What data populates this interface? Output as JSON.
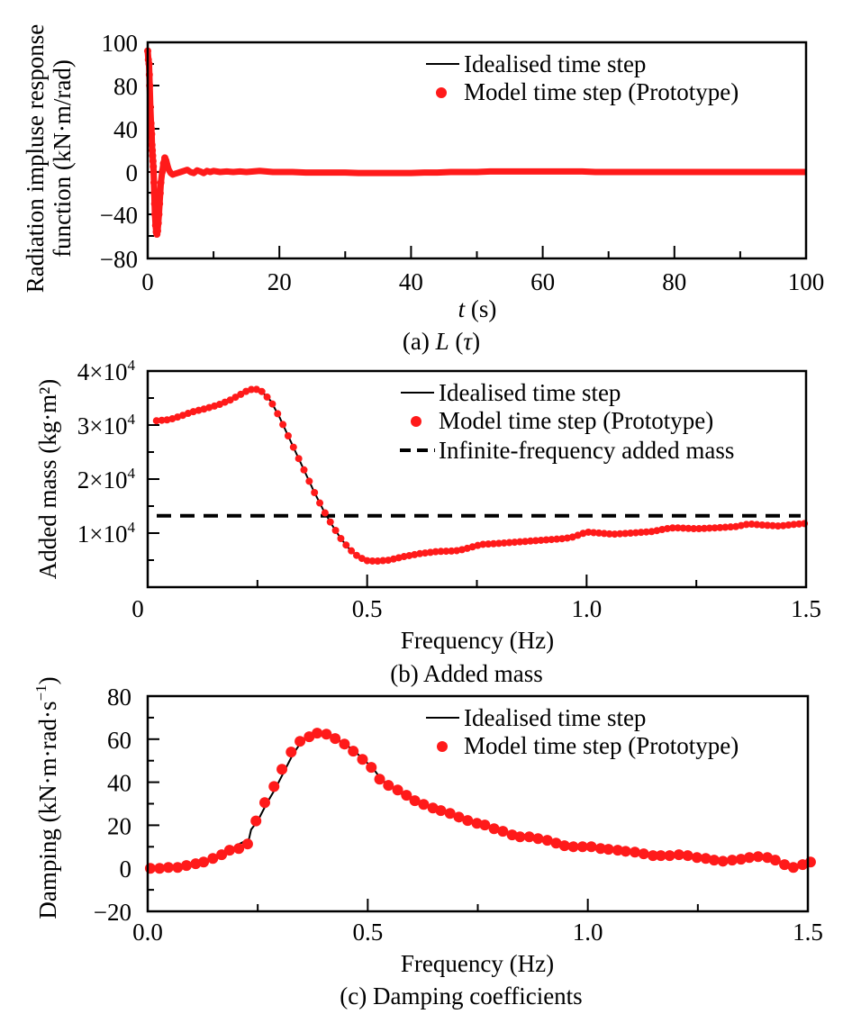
{
  "colors": {
    "model": "#ff1a1a",
    "ideal": "#000000",
    "infinite": "#000000"
  },
  "chart_data": [
    {
      "id": "a",
      "type": "line",
      "caption": "(a) L (τ)",
      "caption_parts": {
        "prefix": "(a) ",
        "italic1": "L",
        "mid": " (",
        "italic2": "τ",
        "suffix": ")"
      },
      "xlabel": "t (s)",
      "xlabel_parts": {
        "italic": "t",
        "rest": " (s)"
      },
      "ylabel_lines": [
        "Radiation impluse response",
        "function (kN·m/rad)"
      ],
      "xlim": [
        0,
        100
      ],
      "ylim": [
        -80,
        100
      ],
      "xticks": [
        0,
        20,
        40,
        60,
        80,
        100
      ],
      "xtick_labels": [
        "0",
        "20",
        "40",
        "60",
        "80",
        "100"
      ],
      "yticks_printed": [
        "100",
        "80",
        "40",
        "0",
        "−40",
        "−80"
      ],
      "legend": {
        "position": "top-right",
        "entries": [
          "Idealised time step",
          "Model time step (Prototype)"
        ]
      },
      "series": [
        {
          "name": "Idealised time step",
          "style": "line",
          "x": [
            0,
            0.2,
            0.4,
            0.6,
            0.8,
            1.0,
            1.2,
            1.5,
            2.0,
            2.6,
            3.2,
            4.0,
            5.0,
            6.0,
            7.0,
            8.0,
            9.0,
            10,
            12,
            14,
            17,
            20,
            25,
            30,
            35,
            40,
            50,
            60,
            70,
            80,
            90,
            100
          ],
          "y": [
            96,
            80,
            40,
            0,
            -40,
            -58,
            -55,
            -30,
            -5,
            13,
            5,
            -2.5,
            0,
            2,
            -1,
            1.5,
            -1,
            1,
            0,
            0.5,
            1,
            0,
            0,
            -0.5,
            -1,
            -1,
            0,
            0.5,
            0,
            0,
            0,
            0
          ]
        },
        {
          "name": "Model time step (Prototype)",
          "style": "markers",
          "x": [
            0,
            0.1,
            0.2,
            0.25,
            0.3,
            0.4,
            0.5,
            0.55,
            0.6,
            0.65,
            0.7,
            0.75,
            0.8,
            0.85,
            0.9,
            0.95,
            1.0,
            1.05,
            1.1,
            1.2,
            1.3,
            1.4,
            1.5,
            1.6,
            1.7,
            1.8,
            1.9,
            2.0,
            2.2,
            2.4,
            2.6,
            2.8,
            3.0,
            3.2,
            3.5,
            3.8,
            4.0,
            4.5,
            5.0,
            5.5,
            6.0,
            6.5,
            7.0,
            7.5,
            8.0,
            8.5,
            9.0,
            9.5,
            10,
            11,
            12,
            13,
            14,
            15,
            16,
            17,
            18,
            19,
            20,
            22,
            24,
            26,
            28,
            30,
            32,
            34,
            36,
            38,
            40,
            42,
            44,
            46,
            48,
            50,
            52,
            54,
            56,
            58,
            60,
            62,
            64,
            66,
            68,
            70,
            72,
            74,
            76,
            78,
            80,
            82,
            84,
            86,
            88,
            90,
            92,
            94,
            96,
            98,
            100
          ],
          "y": [
            96,
            92,
            90,
            85,
            80,
            60,
            45,
            40,
            35,
            25,
            20,
            15,
            10,
            5,
            0,
            -10,
            -20,
            -30,
            -40,
            -50,
            -56,
            -58,
            -55,
            -48,
            -40,
            -30,
            -20,
            -10,
            0,
            8,
            13,
            11,
            6,
            2,
            -1,
            -2.5,
            -2,
            -1,
            0,
            1,
            2,
            0,
            -1,
            1.5,
            0.5,
            -1,
            1,
            0,
            1,
            0,
            0.5,
            0,
            0.5,
            0,
            0.5,
            1,
            0.5,
            0,
            0,
            0,
            -0.5,
            -0.5,
            -0.5,
            -0.5,
            -1,
            -1,
            -1,
            -1,
            -1,
            -0.5,
            -0.5,
            0,
            0,
            0,
            0.5,
            0.5,
            0.5,
            0.5,
            0.5,
            0.5,
            0.5,
            0.5,
            0,
            0,
            0,
            0,
            0,
            0,
            0,
            0,
            0,
            0,
            0,
            0,
            0,
            0,
            0,
            0,
            0
          ]
        }
      ]
    },
    {
      "id": "b",
      "type": "line",
      "caption": "(b) Added mass",
      "xlabel": "Frequency (Hz)",
      "ylabel": "Added mass (kg·m²)",
      "xlim": [
        0,
        1.5
      ],
      "ylim": [
        0,
        40000
      ],
      "xticks": [
        0,
        0.5,
        1.0,
        1.5
      ],
      "xtick_labels": [
        "0",
        "0.5",
        "1.0",
        "1.5"
      ],
      "yticks": [
        10000,
        20000,
        30000,
        40000
      ],
      "ytick_labels": [
        {
          "mant": "1×10",
          "exp": "4"
        },
        {
          "mant": "2×10",
          "exp": "4"
        },
        {
          "mant": "3×10",
          "exp": "4"
        },
        {
          "mant": "4×10",
          "exp": "4"
        }
      ],
      "legend": {
        "position": "top-right",
        "entries": [
          "Idealised time step",
          "Model time step (Prototype)",
          "Infinite-frequency added mass"
        ]
      },
      "infinite_frequency_added_mass": 13200,
      "series": [
        {
          "name": "Idealised time step",
          "style": "line",
          "x": [
            0.02,
            0.05,
            0.08,
            0.1,
            0.13,
            0.16,
            0.19,
            0.21,
            0.23,
            0.245,
            0.26,
            0.28,
            0.3,
            0.32,
            0.34,
            0.36,
            0.38,
            0.4,
            0.42,
            0.44,
            0.46,
            0.48,
            0.5,
            0.52,
            0.55,
            0.58,
            0.62,
            0.66,
            0.7,
            0.72,
            0.76,
            0.8,
            0.85,
            0.9,
            0.95,
            0.97,
            1.0,
            1.03,
            1.06,
            1.1,
            1.15,
            1.18,
            1.2,
            1.25,
            1.3,
            1.34,
            1.37,
            1.4,
            1.44,
            1.47,
            1.5
          ],
          "y": [
            30800,
            31000,
            31800,
            32400,
            33000,
            33700,
            34700,
            35600,
            36500,
            36700,
            36200,
            34500,
            31500,
            28000,
            24500,
            21000,
            17500,
            14300,
            11500,
            9000,
            7000,
            5600,
            4900,
            4800,
            5000,
            5600,
            6200,
            6600,
            6700,
            7000,
            7900,
            8100,
            8400,
            8700,
            9000,
            9300,
            10200,
            10000,
            9800,
            10000,
            10300,
            10800,
            11000,
            10800,
            11000,
            11200,
            11700,
            11500,
            11300,
            11600,
            11800
          ]
        },
        {
          "name": "Model time step (Prototype)",
          "style": "markers",
          "step": 0.012,
          "note": "dense markers follow the idealised curve"
        }
      ]
    },
    {
      "id": "c",
      "type": "line",
      "caption": "(c) Damping coefficients",
      "xlabel": "Frequency (Hz)",
      "ylabel": "Damping (kN·m·rad·s⁻¹)",
      "ylabel_parts": {
        "main": "Damping (kN·m·rad·s",
        "sup": "−1",
        "close": ")"
      },
      "xlim": [
        0,
        1.5
      ],
      "ylim": [
        -20,
        80
      ],
      "xticks": [
        0,
        0.5,
        1.0,
        1.5
      ],
      "xtick_labels": [
        "0.0",
        "0.5",
        "1.0",
        "1.5"
      ],
      "yticks": [
        -20,
        0,
        20,
        40,
        60,
        80
      ],
      "ytick_labels": [
        "−20",
        "0",
        "20",
        "40",
        "60",
        "80"
      ],
      "legend": {
        "position": "top-right",
        "entries": [
          "Idealised time step",
          "Model time step (Prototype)"
        ]
      },
      "series": [
        {
          "name": "Idealised time step",
          "style": "line",
          "x": [
            0.0,
            0.05,
            0.1,
            0.15,
            0.19,
            0.21,
            0.23,
            0.235,
            0.25,
            0.27,
            0.29,
            0.31,
            0.33,
            0.35,
            0.37,
            0.39,
            0.41,
            0.43,
            0.45,
            0.47,
            0.49,
            0.51,
            0.53,
            0.55,
            0.6,
            0.65,
            0.7,
            0.75,
            0.8,
            0.85,
            0.9,
            0.95,
            1.0,
            1.05,
            1.1,
            1.15,
            1.2,
            1.25,
            1.3,
            1.35,
            1.39,
            1.42,
            1.45,
            1.47,
            1.49,
            1.5
          ],
          "y": [
            0,
            0.5,
            2,
            4.5,
            8,
            11.5,
            13.5,
            18,
            22,
            30,
            37,
            45,
            53,
            59,
            61.5,
            62.5,
            62,
            60,
            57.5,
            54.5,
            50.5,
            47,
            41.5,
            38,
            31.5,
            27.5,
            24,
            21,
            17.5,
            14.8,
            13.5,
            10.5,
            10,
            9,
            7.8,
            6.2,
            6,
            5.2,
            3.6,
            4.4,
            5.4,
            4.2,
            1.7,
            0.4,
            1.8,
            2.9
          ]
        },
        {
          "name": "Model time step (Prototype)",
          "style": "markers",
          "x": [
            0.006,
            0.027,
            0.047,
            0.068,
            0.088,
            0.109,
            0.127,
            0.148,
            0.168,
            0.186,
            0.207,
            0.227,
            0.246,
            0.266,
            0.287,
            0.305,
            0.326,
            0.346,
            0.367,
            0.385,
            0.406,
            0.426,
            0.447,
            0.467,
            0.488,
            0.508,
            0.527,
            0.547,
            0.568,
            0.588,
            0.607,
            0.627,
            0.648,
            0.666,
            0.687,
            0.707,
            0.727,
            0.748,
            0.766,
            0.787,
            0.807,
            0.828,
            0.846,
            0.867,
            0.887,
            0.908,
            0.928,
            0.947,
            0.967,
            0.988,
            1.008,
            1.029,
            1.047,
            1.068,
            1.086,
            1.107,
            1.127,
            1.148,
            1.166,
            1.186,
            1.207,
            1.227,
            1.248,
            1.268,
            1.287,
            1.307,
            1.328,
            1.348,
            1.367,
            1.387,
            1.408,
            1.426,
            1.447,
            1.467,
            1.488,
            1.506
          ],
          "y": [
            0,
            0,
            0.4,
            0.4,
            1.3,
            2.1,
            2.9,
            4.6,
            6.3,
            8.4,
            9.2,
            11.3,
            22,
            30.5,
            38,
            46,
            54,
            59,
            61.1,
            62.8,
            62.3,
            60.3,
            57.7,
            54.4,
            50.6,
            46.9,
            41.4,
            38.5,
            36.4,
            33.9,
            31.4,
            29.7,
            28.0,
            26.8,
            25.5,
            23.8,
            22.2,
            20.9,
            20.1,
            18.4,
            17.2,
            15.5,
            14.6,
            14.6,
            13.8,
            13.0,
            11.7,
            10.5,
            10.0,
            10.0,
            10.0,
            9.2,
            8.8,
            8.4,
            7.9,
            7.5,
            6.7,
            5.9,
            5.9,
            5.9,
            6.3,
            5.9,
            5.0,
            4.6,
            3.8,
            3.3,
            3.8,
            4.2,
            5.0,
            5.4,
            5.0,
            3.8,
            1.7,
            0.4,
            1.7,
            2.9
          ]
        }
      ]
    }
  ]
}
